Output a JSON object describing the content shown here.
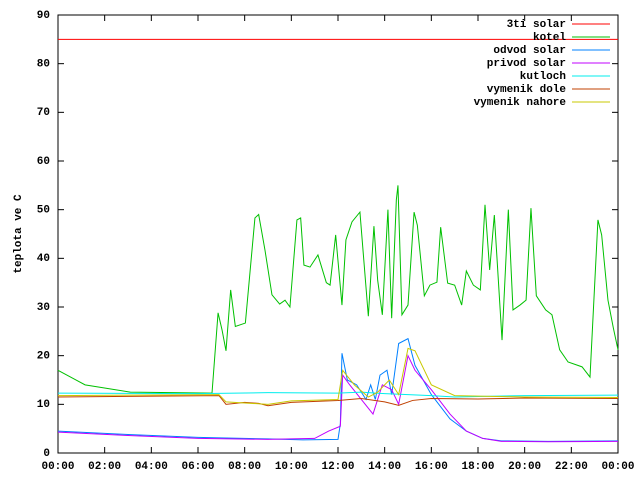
{
  "chart_data": {
    "type": "line",
    "ylabel": "teplota ve C",
    "xlim": [
      0,
      24
    ],
    "xticks": [
      {
        "value": 0,
        "label": "00:00"
      },
      {
        "value": 2,
        "label": "02:00"
      },
      {
        "value": 4,
        "label": "04:00"
      },
      {
        "value": 6,
        "label": "06:00"
      },
      {
        "value": 8,
        "label": "08:00"
      },
      {
        "value": 10,
        "label": "10:00"
      },
      {
        "value": 12,
        "label": "12:00"
      },
      {
        "value": 14,
        "label": "14:00"
      },
      {
        "value": 16,
        "label": "16:00"
      },
      {
        "value": 18,
        "label": "18:00"
      },
      {
        "value": 20,
        "label": "20:00"
      },
      {
        "value": 22,
        "label": "22:00"
      },
      {
        "value": 24,
        "label": "00:00"
      }
    ],
    "ylim": [
      0,
      90
    ],
    "yticks": [
      0,
      10,
      20,
      30,
      40,
      50,
      60,
      70,
      80,
      90
    ],
    "legend": "top-right",
    "series": [
      {
        "name": "3ti solar",
        "color": "#ff0000",
        "x": [
          0,
          24
        ],
        "values": [
          85,
          85
        ]
      },
      {
        "name": "kotel",
        "color": "#00c000",
        "x": [
          0,
          1.16,
          3.1,
          6.6,
          6.86,
          7.03,
          7.2,
          7.4,
          7.6,
          8.03,
          8.44,
          8.6,
          8.87,
          9.17,
          9.5,
          9.73,
          9.94,
          10.24,
          10.4,
          10.54,
          10.8,
          11.14,
          11.5,
          11.66,
          11.9,
          12.17,
          12.34,
          12.6,
          12.94,
          13.3,
          13.54,
          13.7,
          13.9,
          14.14,
          14.3,
          14.5,
          14.57,
          14.74,
          15,
          15.26,
          15.4,
          15.7,
          15.94,
          16.24,
          16.4,
          16.7,
          17,
          17.3,
          17.5,
          17.8,
          18.1,
          18.3,
          18.5,
          18.7,
          19.03,
          19.3,
          19.5,
          19.8,
          20.06,
          20.27,
          20.5,
          20.9,
          21.17,
          21.5,
          21.86,
          22.46,
          22.8,
          23.14,
          23.3,
          23.57,
          23.8,
          24
        ],
        "values": [
          17,
          14,
          12.5,
          12.3,
          28.8,
          25.3,
          21,
          33.5,
          26,
          26.7,
          48.3,
          49,
          41.7,
          32.5,
          30.6,
          31.4,
          30,
          47.9,
          48.3,
          38.6,
          38.2,
          40.7,
          35,
          34.5,
          44.8,
          30.4,
          43.8,
          47.5,
          49.5,
          28.1,
          46.6,
          35.5,
          28.4,
          50,
          27.7,
          52,
          55,
          28.4,
          30.4,
          49.5,
          46.8,
          32.3,
          34.5,
          35.1,
          46.4,
          34.9,
          34.5,
          30.4,
          37.4,
          34.5,
          33.5,
          51,
          37.6,
          48.9,
          23.2,
          50,
          29.4,
          30.4,
          31.4,
          50.3,
          32.3,
          29.4,
          28.4,
          21.2,
          18.7,
          17.7,
          15.6,
          47.9,
          44.8,
          31.4,
          25.7,
          21.2
        ]
      },
      {
        "name": "odvod solar",
        "color": "#0080ff",
        "x": [
          0,
          3,
          6,
          9,
          10.5,
          12,
          12.1,
          12.17,
          12.4,
          12.8,
          13.2,
          13.4,
          13.6,
          13.8,
          14.1,
          14.3,
          14.6,
          15,
          15.3,
          16,
          16.8,
          17.5,
          18.2,
          19,
          21,
          24
        ],
        "values": [
          4.5,
          3.8,
          3.2,
          2.9,
          2.7,
          2.8,
          6,
          20.5,
          15,
          14,
          11,
          14,
          11,
          16,
          17,
          12,
          22.5,
          23.5,
          18,
          12,
          7,
          4.5,
          3,
          2.5,
          2.4,
          2.5
        ]
      },
      {
        "name": "privod solar",
        "color": "#c000ff",
        "x": [
          0,
          3,
          6,
          9,
          11,
          11.6,
          12.1,
          12.2,
          12.5,
          13,
          13.5,
          13.9,
          14.3,
          14.6,
          15,
          15.3,
          16,
          16.8,
          17.5,
          18.2,
          19,
          21,
          24
        ],
        "values": [
          4.3,
          3.6,
          3,
          2.8,
          3,
          4.5,
          5.5,
          16,
          14,
          11,
          8,
          14,
          13,
          10,
          20,
          17,
          13,
          8,
          4.5,
          3,
          2.4,
          2.3,
          2.4
        ]
      },
      {
        "name": "kutloch",
        "color": "#00eeee",
        "x": [
          0,
          6,
          9,
          12,
          13,
          14,
          16,
          17,
          20,
          24
        ],
        "values": [
          12.3,
          12.2,
          12.4,
          12.3,
          12.5,
          12.2,
          11.8,
          11.5,
          11.8,
          11.9
        ]
      },
      {
        "name": "vymenik dole",
        "color": "#c04000",
        "x": [
          0,
          6.9,
          7.2,
          8,
          8.6,
          9,
          10,
          12,
          13,
          14,
          14.6,
          15.2,
          16,
          18,
          20,
          24
        ],
        "values": [
          11.5,
          11.8,
          10,
          10.4,
          10.2,
          9.7,
          10.4,
          10.8,
          11.2,
          10.5,
          9.8,
          10.8,
          11.2,
          11.1,
          11.3,
          11.2
        ]
      },
      {
        "name": "vymenik nahore",
        "color": "#c8c800",
        "x": [
          0,
          6.9,
          7.2,
          9,
          10,
          12,
          12.2,
          12.7,
          13.3,
          13.7,
          14.2,
          14.6,
          15,
          15.3,
          16,
          17,
          20,
          24
        ],
        "values": [
          11.8,
          12,
          10.5,
          10,
          10.7,
          11,
          17,
          14,
          11.5,
          12.5,
          15,
          12,
          21.5,
          21,
          14,
          11.8,
          11.5,
          11.4
        ]
      }
    ]
  }
}
